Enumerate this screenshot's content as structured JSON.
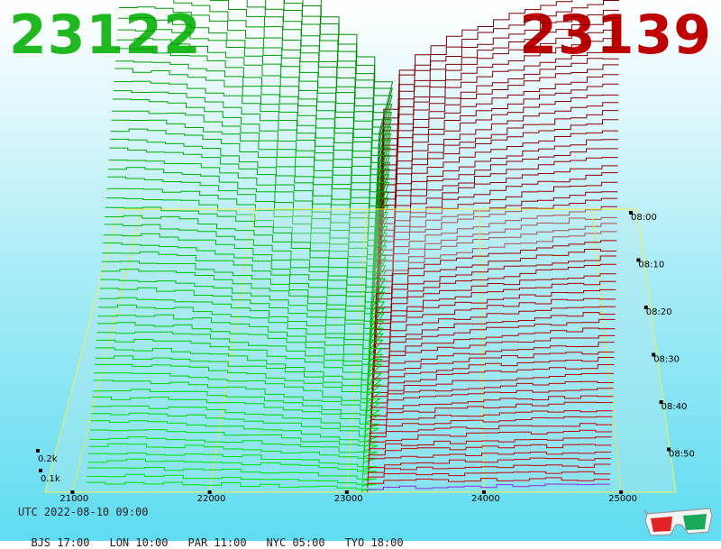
{
  "header": {
    "bid_price": "23122",
    "ask_price": "23139",
    "bid_color": "#1fb81f",
    "ask_color": "#c00000"
  },
  "footer": {
    "utc": "UTC 2022-08-10 09:00",
    "zones": [
      {
        "label": "BJS 17:00"
      },
      {
        "label": "LON 10:00"
      },
      {
        "label": "PAR 11:00"
      },
      {
        "label": "NYC 05:00"
      },
      {
        "label": "TYO 18:00"
      }
    ],
    "glasses_icon": "3d-glasses-icon"
  },
  "chart_data": {
    "type": "area",
    "subtype": "3d-order-book-depth-history",
    "x_ticks": [
      "21000",
      "22000",
      "23000",
      "24000",
      "25000"
    ],
    "depth_ticks": [
      "0.1k",
      "0.2k"
    ],
    "time_ticks": [
      "08:00",
      "08:10",
      "08:20",
      "08:30",
      "08:40",
      "08:50"
    ],
    "bid_price": 23122,
    "ask_price": 23139,
    "series": [
      {
        "name": "bids",
        "color": "#1fb81f"
      },
      {
        "name": "asks",
        "color": "#c00000"
      }
    ],
    "grid": true,
    "legend": "none"
  }
}
